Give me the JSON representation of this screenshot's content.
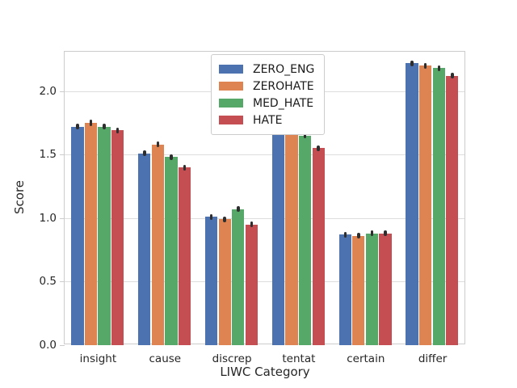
{
  "figure": {
    "title": "",
    "ylabel": "Score",
    "xlabel": "LIWC Category",
    "background": "#ffffff"
  },
  "chart_data": {
    "type": "bar",
    "title": "",
    "xlabel": "LIWC Category",
    "ylabel": "Score",
    "categories": [
      "insight",
      "cause",
      "discrep",
      "tentat",
      "certain",
      "differ"
    ],
    "series": [
      {
        "name": "ZERO_ENG",
        "color": "#4C72B0",
        "values": [
          1.72,
          1.51,
          1.01,
          1.71,
          0.87,
          2.22
        ],
        "errors": [
          0.018,
          0.015,
          0.02,
          0.02,
          0.015,
          0.015
        ]
      },
      {
        "name": "ZEROHATE",
        "color": "#DD8452",
        "values": [
          1.75,
          1.58,
          0.99,
          1.7,
          0.86,
          2.2
        ],
        "errors": [
          0.025,
          0.02,
          0.015,
          0.02,
          0.015,
          0.015
        ]
      },
      {
        "name": "MED_HATE",
        "color": "#55A868",
        "values": [
          1.72,
          1.48,
          1.07,
          1.65,
          0.88,
          2.18
        ],
        "errors": [
          0.015,
          0.015,
          0.02,
          0.015,
          0.015,
          0.012
        ]
      },
      {
        "name": "HATE",
        "color": "#C44E52",
        "values": [
          1.69,
          1.4,
          0.95,
          1.55,
          0.88,
          2.12
        ],
        "errors": [
          0.02,
          0.015,
          0.02,
          0.02,
          0.015,
          0.02
        ]
      }
    ],
    "ylim": [
      0,
      2.31
    ],
    "yticks": [
      0.0,
      0.5,
      1.0,
      1.5,
      2.0
    ],
    "grid": true,
    "legend_position": "upper center",
    "group_width_fraction": 0.8
  },
  "style": {
    "grid_color": "#dddddd",
    "spine_color": "#cccccc",
    "tick_label_color": "#262626",
    "error_bar_color": "#2e2e2e"
  }
}
